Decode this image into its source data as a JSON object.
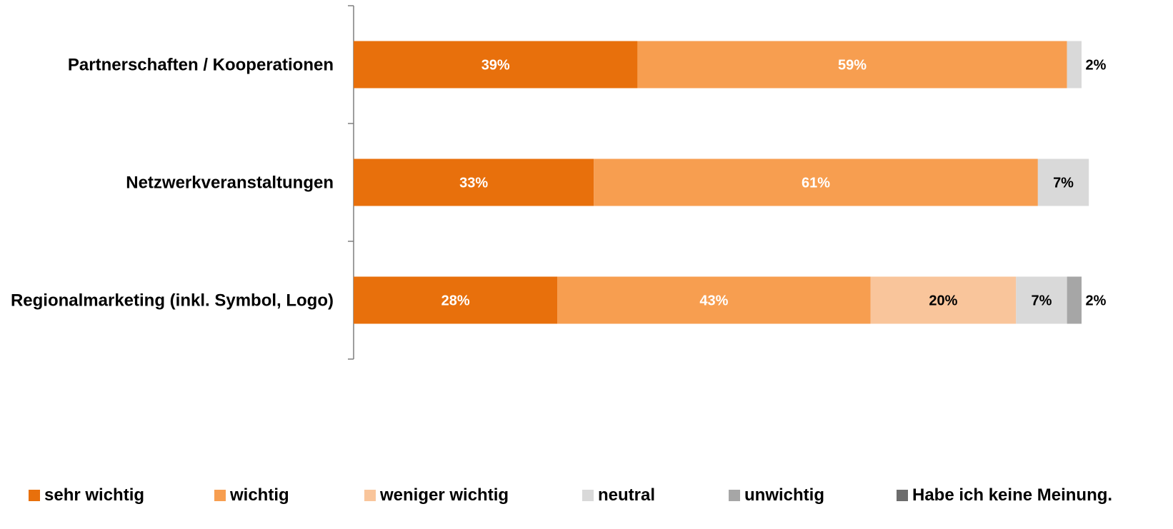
{
  "chart_data": {
    "type": "bar",
    "orientation": "horizontal",
    "stacked": true,
    "categories": [
      "Partnerschaften / Kooperationen",
      "Netzwerkveranstaltungen",
      "Regionalmarketing (inkl. Symbol, Logo)"
    ],
    "series": [
      {
        "name": "sehr wichtig",
        "color": "#E8700C",
        "label_color": "#FFFFFF",
        "values": [
          39,
          33,
          28
        ],
        "labels": [
          "39%",
          "33%",
          "28%"
        ]
      },
      {
        "name": "wichtig",
        "color": "#F79E50",
        "label_color": "#FFFFFF",
        "values": [
          59,
          61,
          43
        ],
        "labels": [
          "59%",
          "61%",
          "43%"
        ]
      },
      {
        "name": "weniger wichtig",
        "color": "#F9C59B",
        "label_color": "#000000",
        "values": [
          0,
          0,
          20
        ],
        "labels": [
          "",
          "",
          "20%"
        ]
      },
      {
        "name": "neutral",
        "color": "#D9D9D9",
        "label_color": "#000000",
        "values": [
          2,
          7,
          7
        ],
        "labels": [
          "2%",
          "7%",
          "7%"
        ]
      },
      {
        "name": "unwichtig",
        "color": "#A6A6A6",
        "label_color": "#000000",
        "values": [
          0,
          0,
          2
        ],
        "labels": [
          "",
          "",
          "2%"
        ]
      },
      {
        "name": "Habe ich keine Meinung.",
        "color": "#6D6D6D",
        "label_color": "#000000",
        "values": [
          0,
          0,
          0
        ],
        "labels": [
          "",
          "",
          ""
        ]
      }
    ],
    "title": "",
    "xlabel": "",
    "ylabel": "",
    "xlim": [
      0,
      100
    ],
    "grid": false,
    "legend_position": "bottom"
  }
}
